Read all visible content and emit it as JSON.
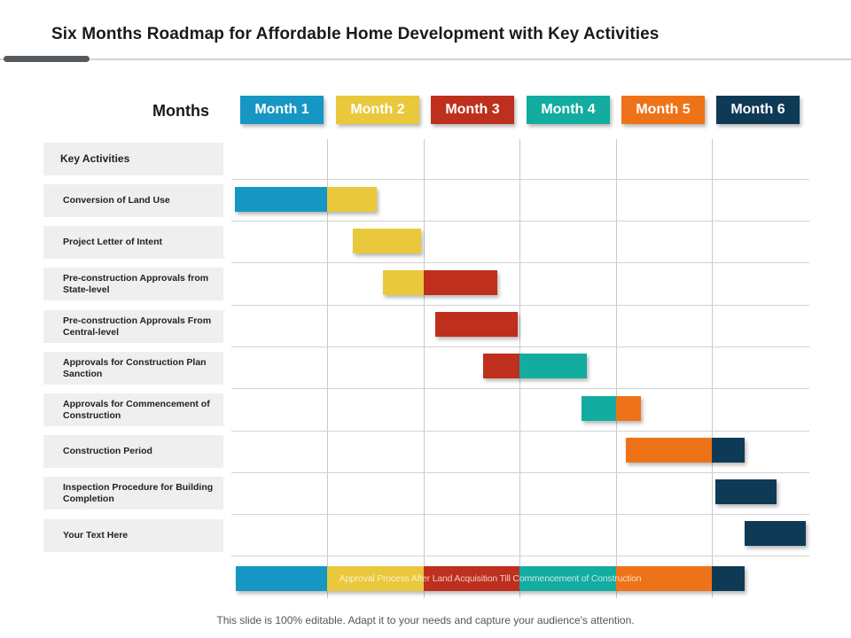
{
  "title": "Six Months Roadmap for Affordable Home Development with Key Activities",
  "months_label": "Months",
  "colors": {
    "month1": "#1596c3",
    "month2": "#e9c83b",
    "month3": "#be2f1d",
    "month4": "#13aca0",
    "month5": "#ee7318",
    "month6": "#0e3a56"
  },
  "months": [
    {
      "label": "Month 1",
      "color": "#1596c3"
    },
    {
      "label": "Month 2",
      "color": "#e9c83b"
    },
    {
      "label": "Month 3",
      "color": "#be2f1d"
    },
    {
      "label": "Month 4",
      "color": "#13aca0"
    },
    {
      "label": "Month 5",
      "color": "#ee7318"
    },
    {
      "label": "Month 6",
      "color": "#0e3a56"
    }
  ],
  "activities_header": "Key Activities",
  "activities": [
    "Conversion of Land Use",
    "Project Letter of Intent",
    "Pre-construction Approvals from State-level",
    "Pre-construction Approvals From Central-level",
    "Approvals for Construction Plan Sanction",
    "Approvals for Commencement of Construction",
    "Construction Period",
    "Inspection Procedure for Building Completion",
    "Your Text Here"
  ],
  "summary_label": "Approval Process After Land Acquisition Till Commencement of Construction",
  "footer": "This slide is 100% editable. Adapt it to your needs and capture your audience's attention."
}
